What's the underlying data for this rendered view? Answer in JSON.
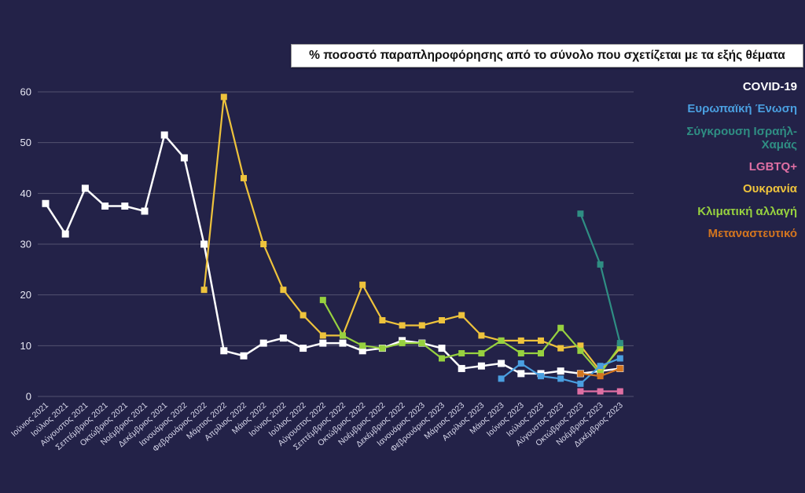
{
  "title": "% ποσοστό παραπληροφόρησης από το σύνολο που σχετίζεται με τα εξής θέματα",
  "colors": {
    "background": "#232248",
    "gridline": "rgba(255,255,255,0.22)",
    "axis_text": "#e8e8f4"
  },
  "legend": [
    {
      "label": "COVID-19",
      "color": "#ffffff"
    },
    {
      "label": "Ευρωπαϊκή Ένωση",
      "color": "#4a9fe0"
    },
    {
      "label": "Σύγκρουση Ισραήλ-Χαμάς",
      "color": "#2f8e83"
    },
    {
      "label": "LGBTQ+",
      "color": "#df6fa3"
    },
    {
      "label": "Ουκρανία",
      "color": "#eec33c"
    },
    {
      "label": "Κλιματική αλλαγή",
      "color": "#97d13f"
    },
    {
      "label": "Μεταναστευτικό",
      "color": "#d3751f"
    }
  ],
  "chart_data": {
    "type": "line",
    "title": "% ποσοστό παραπληροφόρησης από το σύνολο που σχετίζεται με τα εξής θέματα",
    "xlabel": "",
    "ylabel": "",
    "ylim": [
      0,
      60
    ],
    "yticks": [
      0,
      10,
      20,
      30,
      40,
      50,
      60
    ],
    "grid": true,
    "legend_position": "right",
    "marker": "square",
    "categories": [
      "Ιούνιος 2021",
      "Ιούλιος 2021",
      "Αύγουστος 2021",
      "Σεπτέμβριος 2021",
      "Οκτώβριος 2021",
      "Νοέμβριος 2021",
      "Δεκέμβριος 2021",
      "Ιανουάριος 2022",
      "Φεβρουάριος 2022",
      "Μάρτιος 2022",
      "Απρίλιος 2022",
      "Μάιος 2022",
      "Ιούνιος 2022",
      "Ιούλιος 2022",
      "Αύγουστος 2022",
      "Σεπτέμβριος 2022",
      "Οκτώβριος 2022",
      "Νοέμβριος 2022",
      "Δεκέμβριος 2022",
      "Ιανουάριος 2023",
      "Φεβρουάριος 2023",
      "Μάρτιος 2023",
      "Απρίλιος 2023",
      "Μάιος 2023",
      "Ιούνιος 2023",
      "Ιούλιος 2023",
      "Αύγουστος 2023",
      "Οκτώβριος 2023",
      "Νοέμβριος 2023",
      "Δεκέμβριος 2023"
    ],
    "series": [
      {
        "name": "COVID-19",
        "color": "#ffffff",
        "values": [
          38,
          32,
          41,
          37.5,
          37.5,
          36.5,
          51.5,
          47,
          30,
          9,
          8,
          10.5,
          11.5,
          9.5,
          10.5,
          10.5,
          9,
          9.5,
          11,
          10.5,
          9.5,
          5.5,
          6,
          6.5,
          4.5,
          4.5,
          5,
          4.5,
          5,
          5.5
        ]
      },
      {
        "name": "Ουκρανία",
        "color": "#eec33c",
        "values": [
          null,
          null,
          null,
          null,
          null,
          null,
          null,
          null,
          21,
          59,
          43,
          30,
          21,
          16,
          12,
          12,
          22,
          15,
          14,
          14,
          15,
          16,
          12,
          11,
          11,
          11,
          9.5,
          10,
          5,
          9.5
        ]
      },
      {
        "name": "Κλιματική αλλαγή",
        "color": "#97d13f",
        "values": [
          null,
          null,
          null,
          null,
          null,
          null,
          null,
          null,
          null,
          null,
          null,
          null,
          null,
          null,
          19,
          12,
          10,
          9.5,
          10.5,
          10.5,
          7.5,
          8.5,
          8.5,
          11,
          8.5,
          8.5,
          13.5,
          9,
          4.5,
          10
        ]
      },
      {
        "name": "Ευρωπαϊκή Ένωση",
        "color": "#4a9fe0",
        "values": [
          null,
          null,
          null,
          null,
          null,
          null,
          null,
          null,
          null,
          null,
          null,
          null,
          null,
          null,
          null,
          null,
          null,
          null,
          null,
          null,
          null,
          null,
          null,
          3.5,
          6.5,
          4,
          3.5,
          2.5,
          6,
          7.5
        ]
      },
      {
        "name": "Μεταναστευτικό",
        "color": "#d3751f",
        "values": [
          null,
          null,
          null,
          null,
          null,
          null,
          null,
          null,
          null,
          null,
          null,
          null,
          null,
          null,
          null,
          null,
          null,
          null,
          null,
          null,
          null,
          null,
          null,
          null,
          null,
          null,
          null,
          4.5,
          4,
          5.5
        ]
      },
      {
        "name": "Σύγκρουση Ισραήλ-Χαμάς",
        "color": "#2f8e83",
        "values": [
          null,
          null,
          null,
          null,
          null,
          null,
          null,
          null,
          null,
          null,
          null,
          null,
          null,
          null,
          null,
          null,
          null,
          null,
          null,
          null,
          null,
          null,
          null,
          null,
          null,
          null,
          null,
          36,
          26,
          10.5
        ]
      },
      {
        "name": "LGBTQ+",
        "color": "#df6fa3",
        "values": [
          null,
          null,
          null,
          null,
          null,
          null,
          null,
          null,
          null,
          null,
          null,
          null,
          null,
          null,
          null,
          null,
          null,
          null,
          null,
          null,
          null,
          null,
          null,
          null,
          null,
          null,
          null,
          1,
          1,
          1
        ]
      }
    ]
  }
}
